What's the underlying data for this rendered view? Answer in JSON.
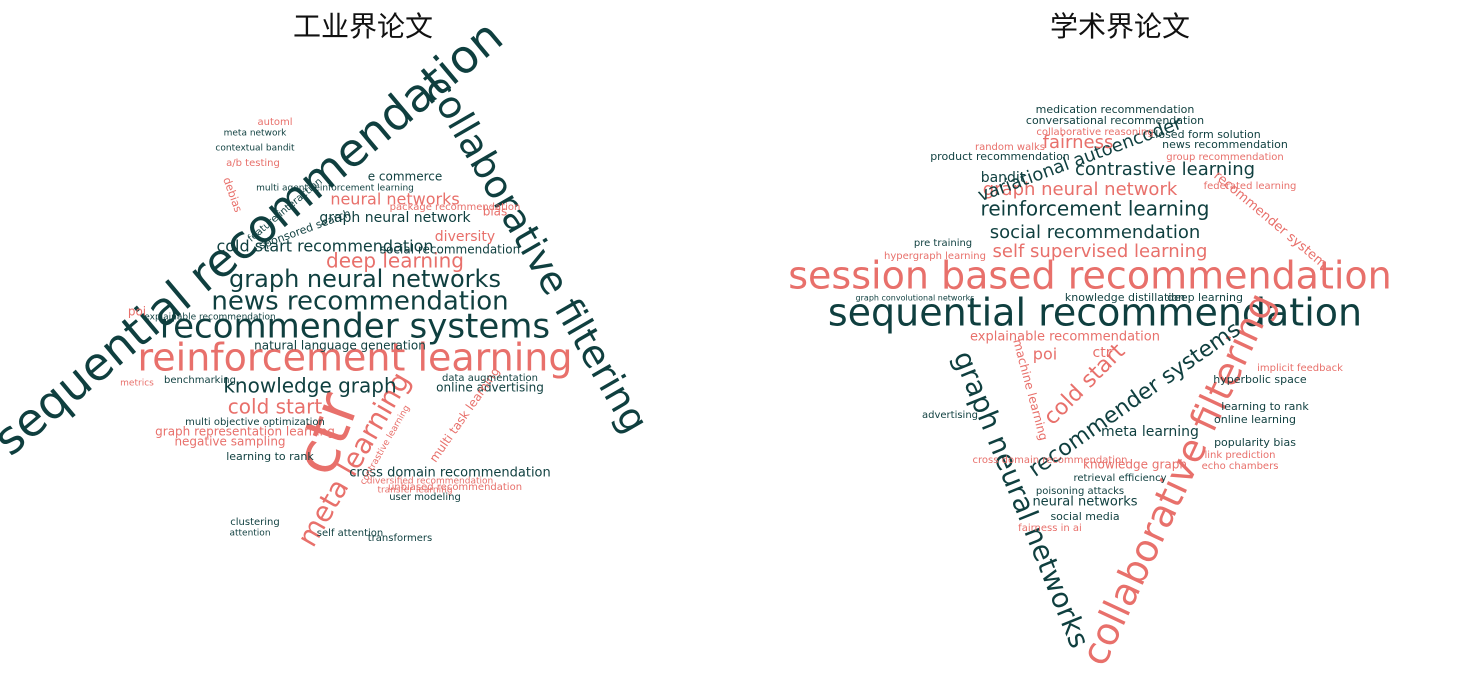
{
  "left": {
    "title": "工业界论文",
    "words": [
      "sequential recommendation",
      "collaborative filtering",
      "reinforcement learning",
      "recommender systems",
      "news recommendation",
      "graph neural networks",
      "ctr",
      "meta learning",
      "deep learning",
      "knowledge graph",
      "cold start",
      "cold start recommendation",
      "graph neural network",
      "neural networks",
      "social recommendation",
      "diversity",
      "online advertising",
      "cross domain recommendation",
      "graph representation learning",
      "negative sampling",
      "learning to rank",
      "multi task learning",
      "multi objective optimization",
      "natural language generation",
      "e commerce",
      "unbiased recommendation",
      "data augmentation",
      "benchmarking",
      "explainable recommendation",
      "user modeling",
      "self attention",
      "transformers",
      "clustering",
      "attention",
      "contextual bandit",
      "meta network",
      "automl",
      "a/b testing",
      "bias",
      "poi",
      "metrics",
      "multi agent reinforcement learning",
      "sponsored search",
      "feature interaction",
      "debias",
      "package recommendation",
      "diversified recommendation",
      "transfer learning",
      "contrastive learning"
    ]
  },
  "right": {
    "title": "学术界论文",
    "words": [
      "session based recommendation",
      "sequential recommendation",
      "collaborative filtering",
      "graph neural networks",
      "reinforcement learning",
      "graph neural network",
      "social recommendation",
      "self supervised learning",
      "contrastive learning",
      "variational autoencoder",
      "fairness",
      "recommender systems",
      "cold start",
      "explainable recommendation",
      "poi",
      "ctr",
      "meta learning",
      "knowledge graph",
      "knowledge distillation",
      "deep learning",
      "neural networks",
      "social media",
      "poisoning attacks",
      "retrieval efficiency",
      "cross domain recommendation",
      "fairness in ai",
      "popularity bias",
      "online learning",
      "learning to rank",
      "echo chambers",
      "link prediction",
      "hyperbolic space",
      "implicit feedback",
      "bandit",
      "closed form solution",
      "news recommendation",
      "group recommendation",
      "federated learning",
      "recommender system",
      "product recommendation",
      "random walks",
      "conversational recommendation",
      "medication recommendation",
      "collaborative reasoning",
      "pre training",
      "hypergraph learning",
      "graph convolutional networks",
      "advertising",
      "machine learning"
    ]
  }
}
